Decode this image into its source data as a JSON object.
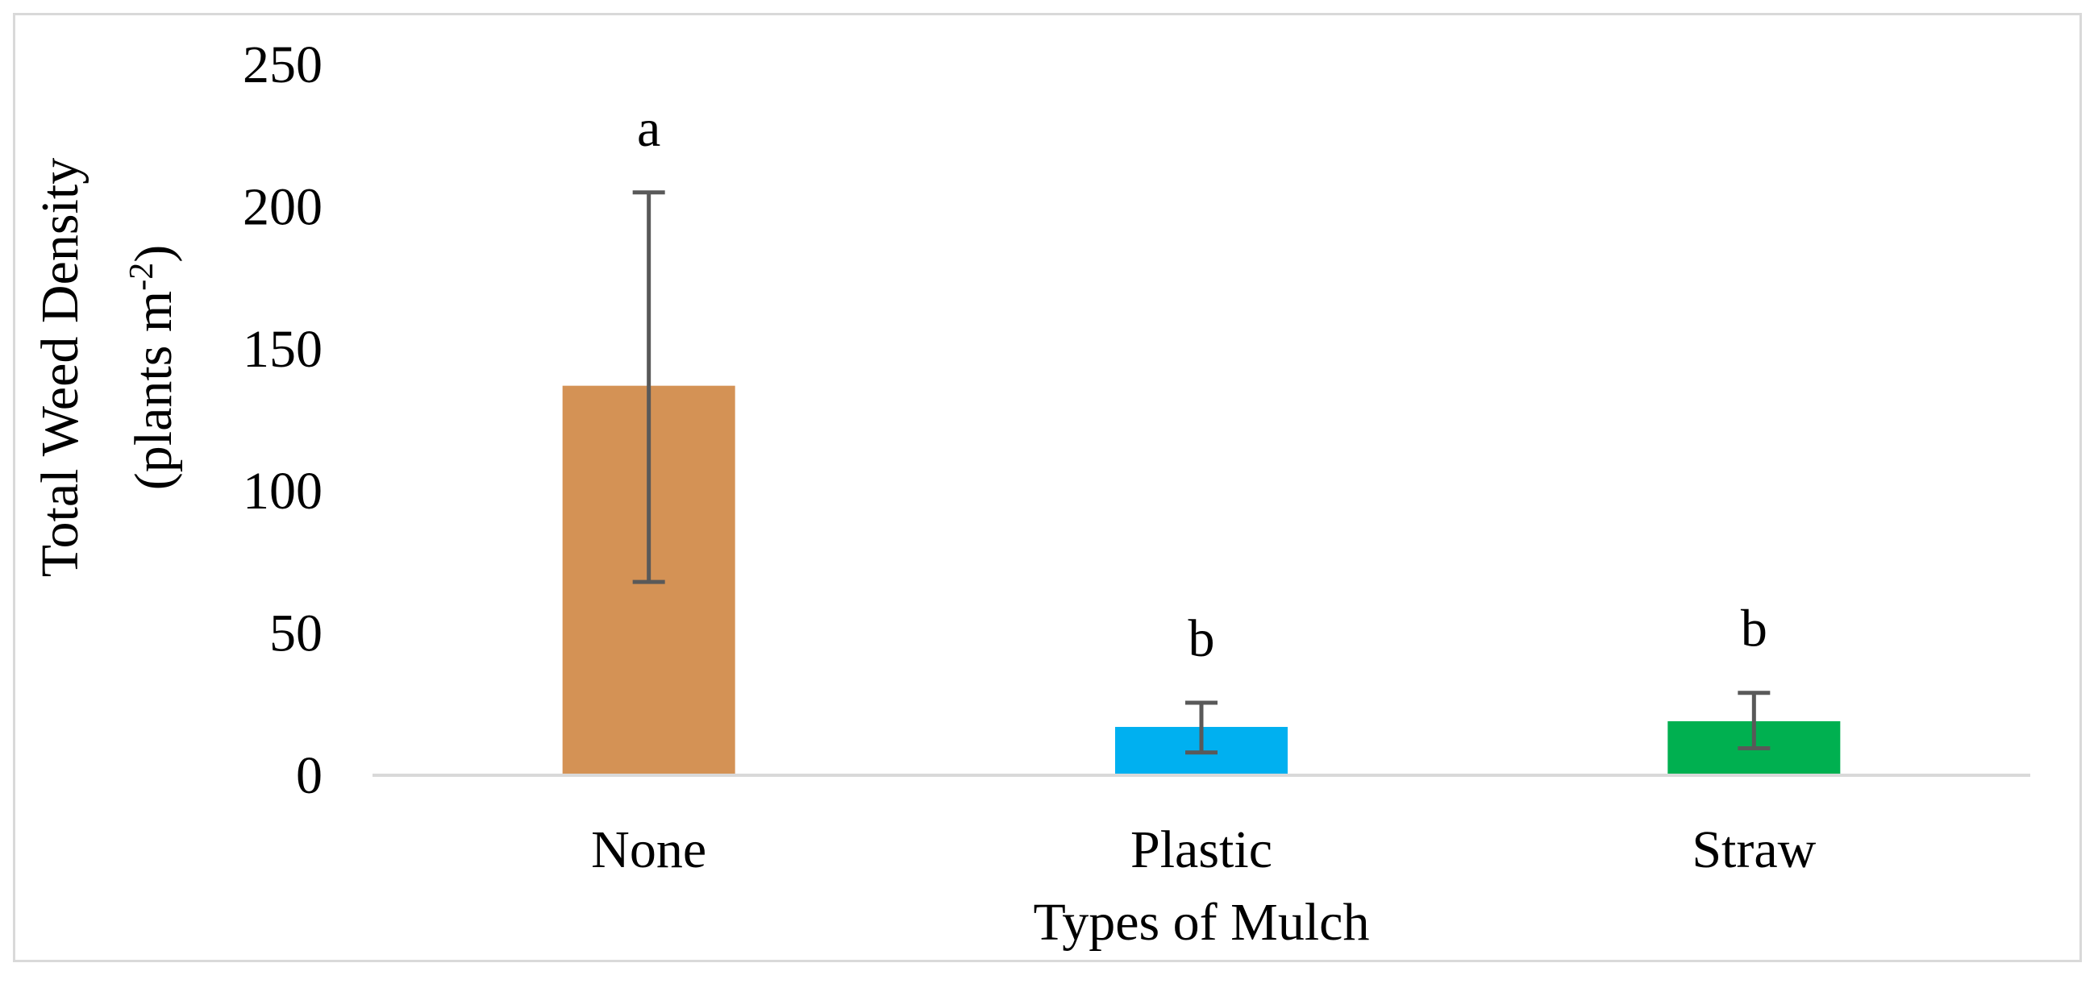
{
  "chart_data": {
    "type": "bar",
    "categories": [
      "None",
      "Plastic",
      "Straw"
    ],
    "values": [
      137,
      17,
      19
    ],
    "error_low": [
      68,
      8,
      9.5
    ],
    "error_high": [
      205,
      25.5,
      29
    ],
    "significance": [
      "a",
      "b",
      "b"
    ],
    "colors": [
      "#d49255",
      "#00b0f0",
      "#00b050"
    ],
    "error_bar_color": "#595959",
    "axis_color": "#d9d9d9",
    "title": "",
    "xlabel": "Types of Mulch",
    "ylabel_line1": "Total Weed Density",
    "ylabel_line2_prefix": "(plants m",
    "ylabel_line2_sup": "-2",
    "ylabel_line2_suffix": ")",
    "ylim": [
      0,
      250
    ],
    "yticks": [
      "0",
      "50",
      "100",
      "150",
      "200",
      "250"
    ],
    "grid": false,
    "legend": false
  }
}
